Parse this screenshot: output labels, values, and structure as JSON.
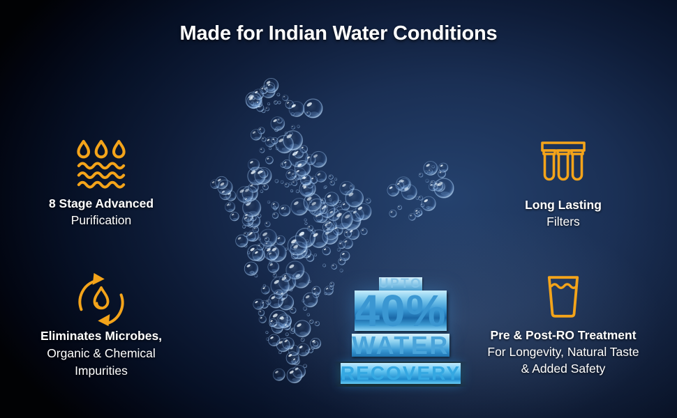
{
  "title": "Made for Indian Water Conditions",
  "features": {
    "purification": {
      "icon": "droplets-waves-icon",
      "line1": "8 Stage Advanced",
      "line2": "Purification"
    },
    "microbes": {
      "icon": "recycle-droplet-icon",
      "line1": "Eliminates Microbes,",
      "line2": "Organic & Chemical",
      "line3": "Impurities"
    },
    "filters": {
      "icon": "filter-cartridges-icon",
      "line1": "Long Lasting",
      "line2": "Filters"
    },
    "treatment": {
      "icon": "water-glass-icon",
      "line1": "Pre & Post-RO Treatment",
      "line2": "For Longevity, Natural Taste",
      "line3": "& Added Safety"
    }
  },
  "overlay": {
    "upto": "UPTO",
    "percent": "40%",
    "water": "WATER",
    "recovery": "RECOVERY"
  },
  "map": {
    "label": "Map of India formed by water droplets"
  },
  "colors": {
    "accent_orange": "#F4A41A",
    "headline_white": "#FFFFFF",
    "overlay_blue": "#3FA9DE",
    "background_center": "#24406B",
    "background_edge": "#010204"
  }
}
